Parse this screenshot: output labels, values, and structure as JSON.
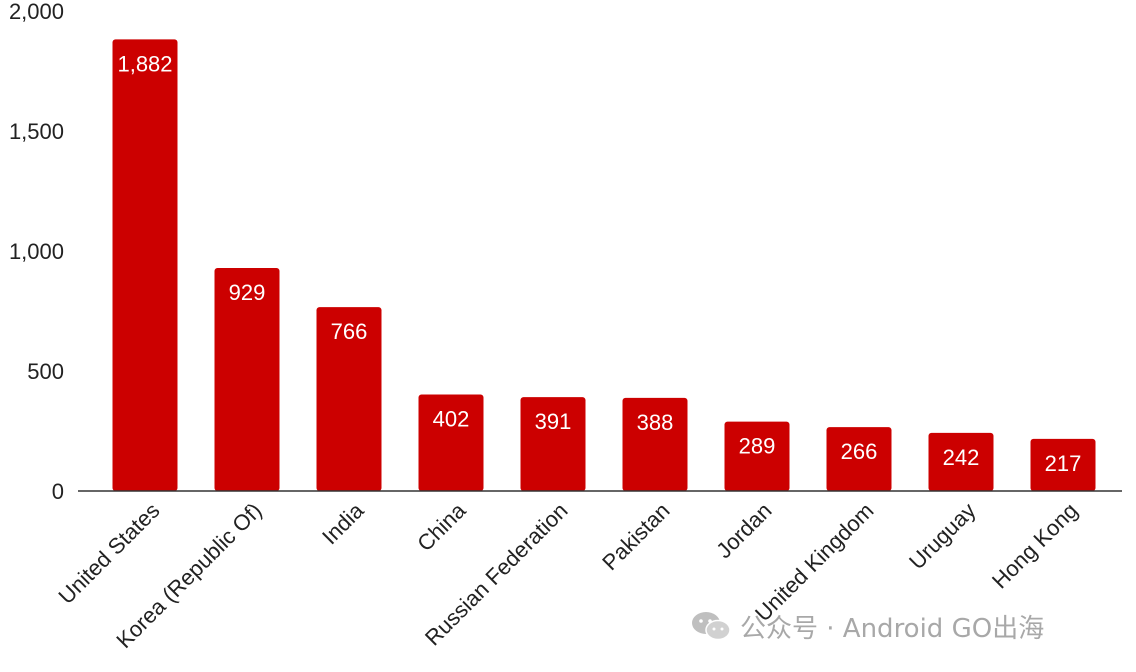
{
  "chart_data": {
    "type": "bar",
    "categories": [
      "United States",
      "Korea (Republic Of)",
      "India",
      "China",
      "Russian Federation",
      "Pakistan",
      "Jordan",
      "United Kingdom",
      "Uruguay",
      "Hong Kong"
    ],
    "values": [
      1882,
      929,
      766,
      402,
      391,
      388,
      289,
      266,
      242,
      217
    ],
    "data_labels": [
      "1,882",
      "929",
      "766",
      "402",
      "391",
      "388",
      "289",
      "266",
      "242",
      "217"
    ],
    "yticks": [
      "0",
      "500",
      "1,000",
      "1,500",
      "2,000"
    ],
    "ylim": [
      0,
      2000
    ],
    "grid": false,
    "bar_color": "#cc0000",
    "data_label_color": "#ffffff"
  },
  "watermark": {
    "text": "公众号 · Android GO出海",
    "icon": "wechat-icon"
  }
}
